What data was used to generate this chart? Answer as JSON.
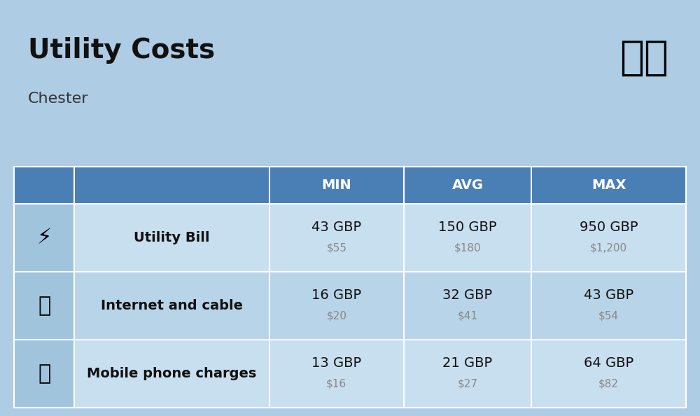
{
  "title": "Utility Costs",
  "subtitle": "Chester",
  "background_color": "#aecce4",
  "header_bg_color": "#4a7fb5",
  "header_text_color": "#ffffff",
  "row_bg_color_1": "#c8dff0",
  "row_bg_color_2": "#b8d4e8",
  "icon_col_bg": "#9fc4dc",
  "col_headers": [
    "MIN",
    "AVG",
    "MAX"
  ],
  "rows": [
    {
      "label": "Utility Bill",
      "icon": "utility",
      "min_gbp": "43 GBP",
      "min_usd": "$55",
      "avg_gbp": "150 GBP",
      "avg_usd": "$180",
      "max_gbp": "950 GBP",
      "max_usd": "$1,200"
    },
    {
      "label": "Internet and cable",
      "icon": "internet",
      "min_gbp": "16 GBP",
      "min_usd": "$20",
      "avg_gbp": "32 GBP",
      "avg_usd": "$41",
      "max_gbp": "43 GBP",
      "max_usd": "$54"
    },
    {
      "label": "Mobile phone charges",
      "icon": "mobile",
      "min_gbp": "13 GBP",
      "min_usd": "$16",
      "avg_gbp": "21 GBP",
      "avg_usd": "$27",
      "max_gbp": "64 GBP",
      "max_usd": "$82"
    }
  ],
  "title_fontsize": 28,
  "subtitle_fontsize": 16,
  "header_fontsize": 14,
  "label_fontsize": 14,
  "value_fontsize": 14,
  "usd_fontsize": 11
}
